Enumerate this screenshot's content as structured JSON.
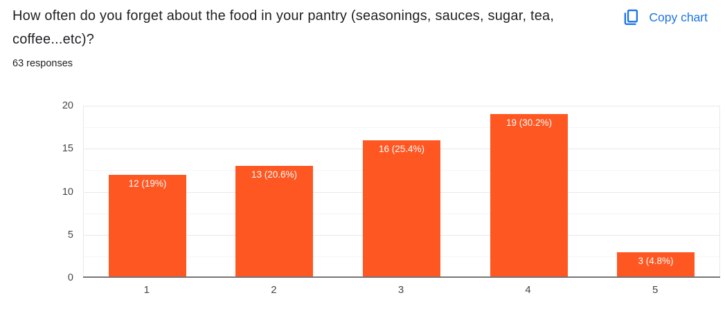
{
  "header": {
    "title": "How often do you forget about the food in your pantry (seasonings, sauces, sugar, tea, coffee...etc)?",
    "responses_count": "63 responses",
    "copy_chart": {
      "label": "Copy chart",
      "icon": "copy-icon",
      "color": "#1a73e8"
    }
  },
  "chart_data": {
    "type": "bar",
    "title": "How often do you forget about the food in your pantry (seasonings, sauces, sugar, tea, coffee...etc)?",
    "subtitle": "63 responses",
    "categories": [
      "1",
      "2",
      "3",
      "4",
      "5"
    ],
    "values": [
      12,
      13,
      16,
      19,
      3
    ],
    "bar_labels": [
      "12 (19%)",
      "13 (20.6%)",
      "16 (25.4%)",
      "19 (30.2%)",
      "3 (4.8%)"
    ],
    "percentages": [
      19,
      20.6,
      25.4,
      30.2,
      4.8
    ],
    "total_responses": 63,
    "xlabel": "",
    "ylabel": "",
    "ylim": [
      0,
      20
    ],
    "yticks": [
      0,
      5,
      10,
      15,
      20
    ],
    "minor_grid_step": 2.5,
    "grid": true,
    "legend": "none",
    "bar_color": "#ff5722",
    "bar_label_color": "#ffffff",
    "axis_label_color": "#444444",
    "gridline_color": "#e8e8e8",
    "minor_gridline_color": "#f5f5f5",
    "baseline_color": "#757575"
  }
}
